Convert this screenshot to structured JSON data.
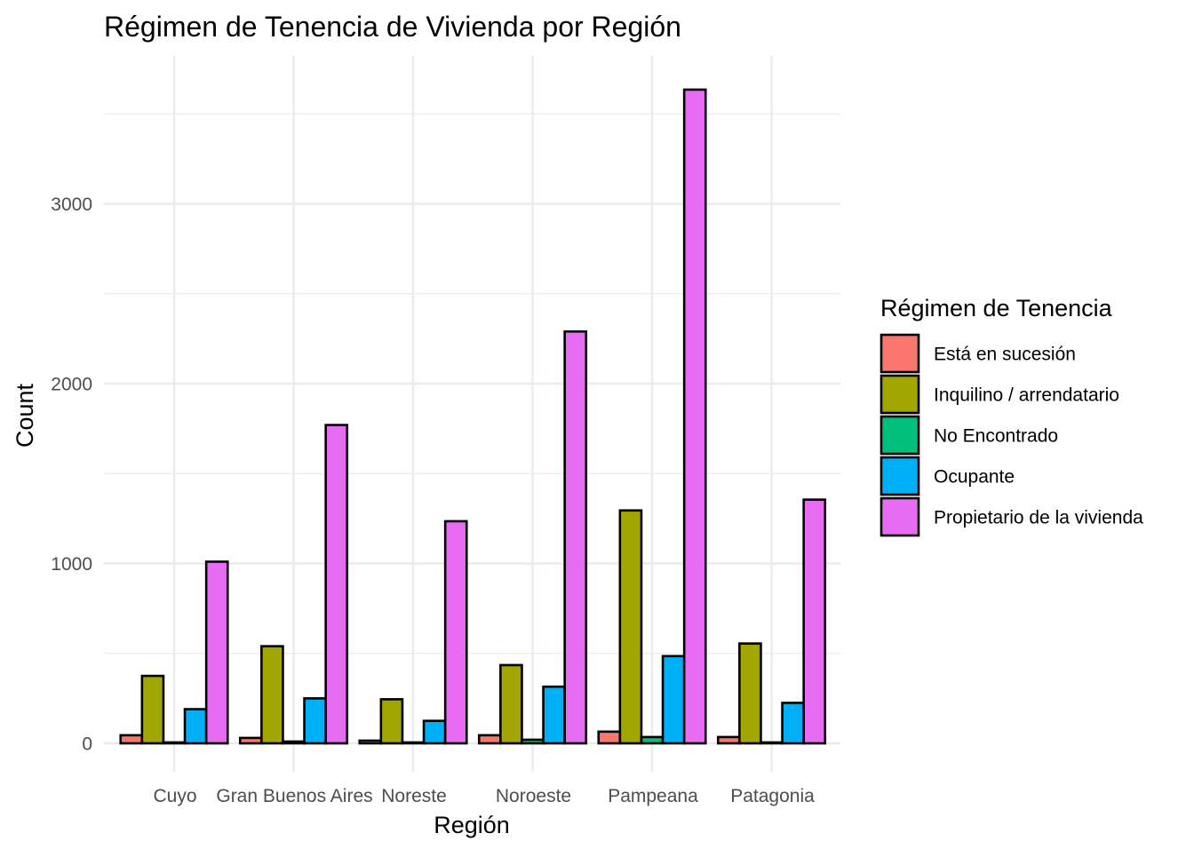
{
  "chart_data": {
    "type": "bar",
    "title": "Régimen de Tenencia de Vivienda por Región",
    "xlabel": "Región",
    "ylabel": "Count",
    "categories": [
      "Cuyo",
      "Gran Buenos Aires",
      "Noreste",
      "Noroeste",
      "Pampeana",
      "Patagonia"
    ],
    "ylim": [
      -190,
      3830
    ],
    "yticks": [
      0,
      1000,
      2000,
      3000
    ],
    "grid": true,
    "legend": {
      "title": "Régimen de Tenencia",
      "placement": "right"
    },
    "series": [
      {
        "name": "Está en sucesión",
        "color": "#F8766D",
        "values": [
          45,
          30,
          15,
          45,
          65,
          35
        ]
      },
      {
        "name": "Inquilino / arrendatario",
        "color": "#A3A500",
        "values": [
          375,
          540,
          245,
          435,
          1295,
          555
        ]
      },
      {
        "name": "No Encontrado",
        "color": "#00BF7D",
        "values": [
          5,
          10,
          5,
          20,
          35,
          5
        ]
      },
      {
        "name": "Ocupante",
        "color": "#00B0F6",
        "values": [
          190,
          250,
          125,
          315,
          485,
          225
        ]
      },
      {
        "name": "Propietario de la vivienda",
        "color": "#E76BF3",
        "values": [
          1010,
          1770,
          1235,
          2290,
          3635,
          1355
        ]
      }
    ]
  }
}
